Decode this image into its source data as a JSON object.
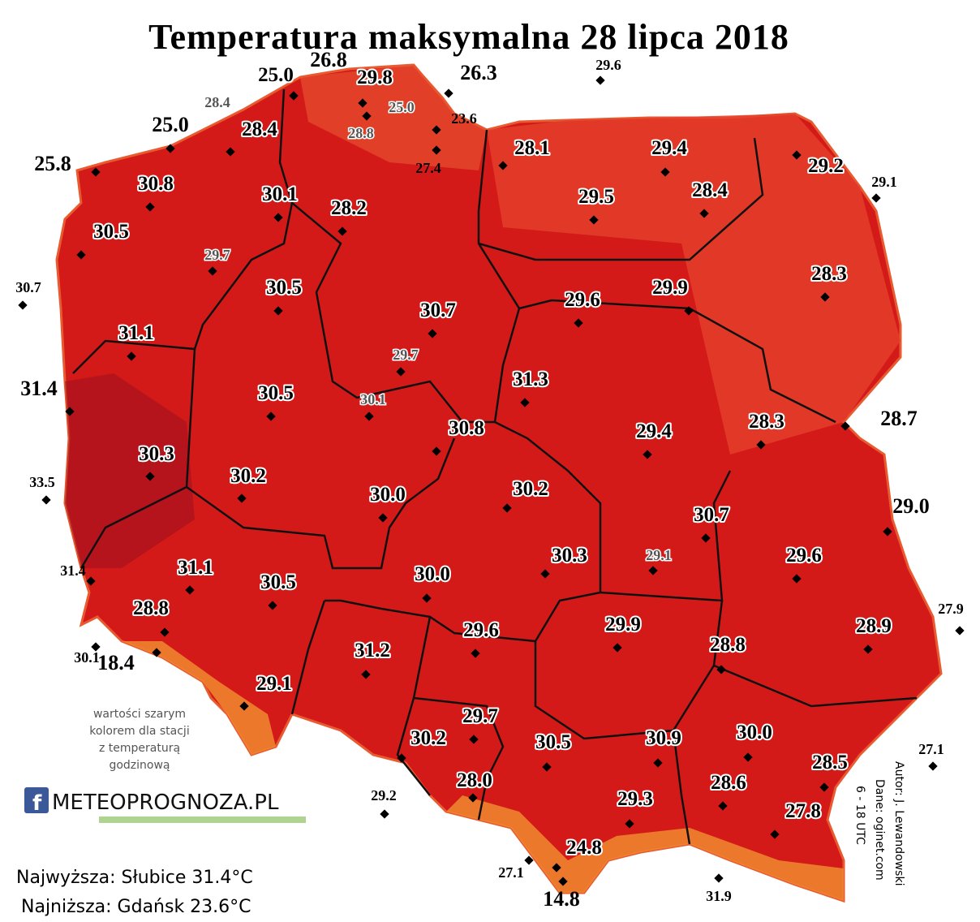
{
  "title": "Temperatura maksymalna 28 lipca 2018",
  "stations": [
    "25.0",
    "26.8",
    "29.8",
    "26.3",
    "25.0",
    "28.4",
    "25.8",
    "23.6",
    "27.4",
    "28.1",
    "29.4",
    "29.2",
    "30.8",
    "30.1",
    "28.2",
    "29.5",
    "28.4",
    "30.5",
    "28.3",
    "30.5",
    "30.7",
    "29.6",
    "29.9",
    "31.1",
    "31.4",
    "31.3",
    "30.5",
    "30.8",
    "29.4",
    "28.3",
    "28.7",
    "30.3",
    "30.2",
    "30.0",
    "30.2",
    "29.0",
    "30.7",
    "30.3",
    "29.6",
    "31.1",
    "30.5",
    "30.0",
    "28.8",
    "29.6",
    "29.9",
    "28.8",
    "28.9",
    "18.4",
    "31.2",
    "29.1",
    "29.7",
    "30.2",
    "30.5",
    "30.9",
    "30.0",
    "28.5",
    "28.0",
    "28.6",
    "29.3",
    "27.8",
    "24.8",
    "14.8",
    "29.6",
    "29.1",
    "30.7",
    "33.5",
    "31.4",
    "30.1",
    "29.2",
    "27.1",
    "31.9",
    "27.9",
    "27.1"
  ],
  "hourly_stations": [
    "28.4",
    "25.0",
    "28.8",
    "29.7",
    "29.7",
    "30.1",
    "29.1"
  ],
  "note": [
    "wartości szarym",
    "kolorem dla stacji",
    "z temperaturą",
    "godzinową"
  ],
  "logo": "METEOPROGNOZA.PL",
  "max_line": "Najwyższa: Słubice 31.4°C",
  "min_line": "Najniższa: Gdańsk 23.6°C",
  "credits": [
    "Autor: J. Lewandowski",
    "Dane: oginet.com",
    "6 - 18 UTC"
  ]
}
